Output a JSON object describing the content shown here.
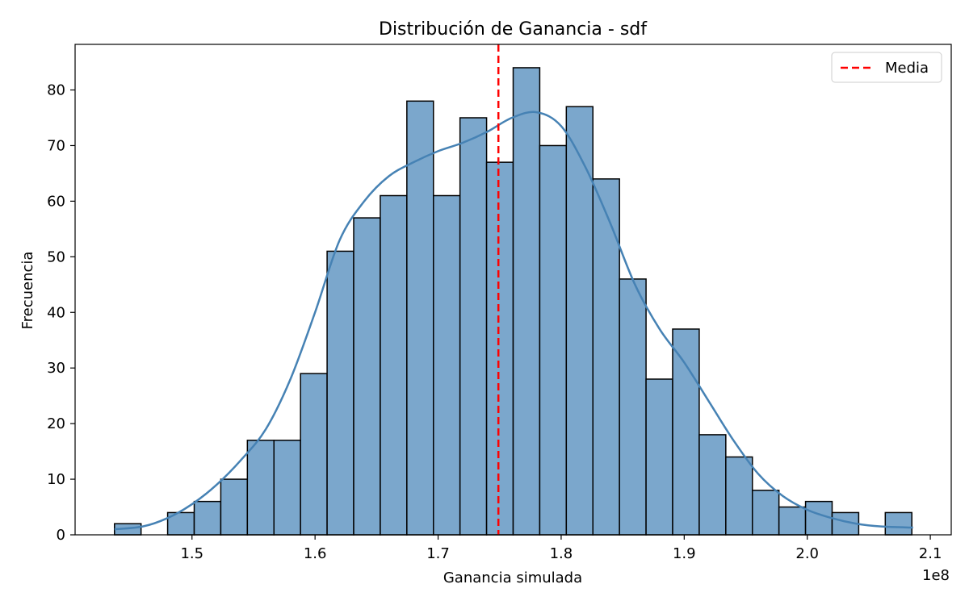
{
  "chart_data": {
    "type": "bar",
    "title": "Distribución de Ganancia - sdf",
    "xlabel": "Ganancia simulada",
    "ylabel": "Frecuencia",
    "x_offset_text": "1e8",
    "xlim": [
      1.405,
      2.117
    ],
    "ylim": [
      0,
      88.2
    ],
    "x_ticks": [
      1.5,
      1.6,
      1.7,
      1.8,
      1.9,
      2.0,
      2.1
    ],
    "x_tick_labels": [
      "1.5",
      "1.6",
      "1.7",
      "1.8",
      "1.9",
      "2.0",
      "2.1"
    ],
    "y_ticks": [
      0,
      10,
      20,
      30,
      40,
      50,
      60,
      70,
      80
    ],
    "y_tick_labels": [
      "0",
      "10",
      "20",
      "30",
      "40",
      "50",
      "60",
      "70",
      "80"
    ],
    "bins": {
      "start": 1.437,
      "width": 0.0216,
      "counts": [
        2,
        0,
        4,
        6,
        10,
        17,
        17,
        29,
        51,
        57,
        61,
        78,
        61,
        75,
        67,
        84,
        70,
        77,
        64,
        46,
        28,
        37,
        18,
        14,
        8,
        5,
        6,
        4,
        0,
        4
      ]
    },
    "kde": {
      "name": "KDE",
      "x": [
        1.437,
        1.46,
        1.48,
        1.5,
        1.52,
        1.54,
        1.56,
        1.58,
        1.6,
        1.62,
        1.64,
        1.66,
        1.68,
        1.7,
        1.72,
        1.74,
        1.76,
        1.78,
        1.8,
        1.82,
        1.84,
        1.86,
        1.88,
        1.9,
        1.92,
        1.94,
        1.96,
        1.98,
        2.0,
        2.02,
        2.04,
        2.06,
        2.086
      ],
      "y": [
        1,
        1.5,
        3,
        5.5,
        9,
        13.5,
        19,
        28,
        40,
        53,
        60,
        64.5,
        67,
        69,
        70.5,
        72.5,
        75,
        76,
        73.5,
        66,
        56,
        45,
        37,
        31,
        24,
        17,
        11,
        7,
        4.5,
        3,
        2,
        1.5,
        1.3
      ],
      "color": "#4682b4"
    },
    "mean": {
      "name": "Media",
      "x": 1.749,
      "color": "#ff0000"
    },
    "bar_color": "#7ba7cc",
    "bar_edge_color": "#000000",
    "legend": {
      "position": "top-right",
      "entries": [
        "Media"
      ]
    },
    "grid": false
  }
}
